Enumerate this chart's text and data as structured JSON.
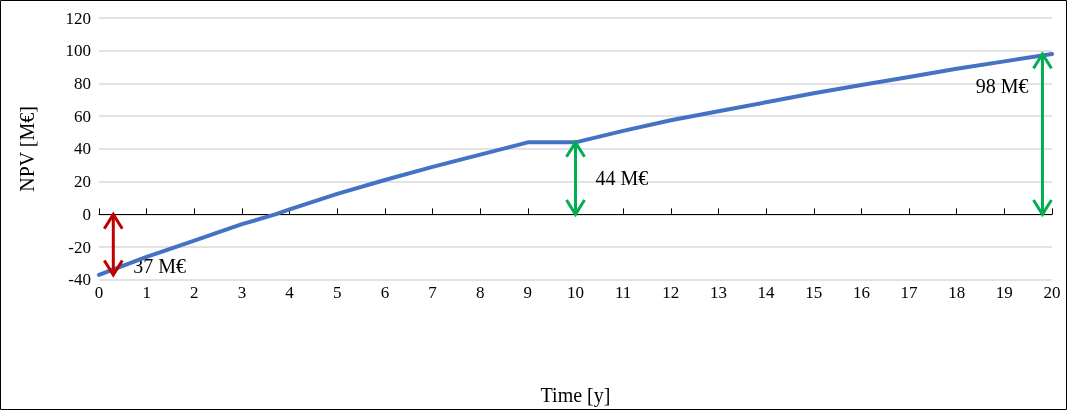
{
  "chart_data": {
    "type": "line",
    "xlabel": "Time [y]",
    "ylabel": "NPV [M€]",
    "x": [
      0,
      1,
      2,
      3,
      3.7,
      4,
      5,
      6,
      7,
      8,
      9,
      10,
      11,
      12,
      13,
      14,
      15,
      16,
      17,
      18,
      19,
      20
    ],
    "series": [
      {
        "color": "#4472c4",
        "values": [
          -37,
          -26,
          -16,
          -6,
          0,
          3,
          12.5,
          21,
          29,
          36.5,
          44,
          44,
          51,
          57.5,
          63,
          68.5,
          74,
          79,
          84,
          89,
          93.5,
          98
        ]
      }
    ],
    "xlim": [
      0,
      20
    ],
    "xticks": [
      0,
      1,
      2,
      3,
      4,
      5,
      6,
      7,
      8,
      9,
      10,
      11,
      12,
      13,
      14,
      15,
      16,
      17,
      18,
      19,
      20
    ],
    "ylim": [
      -40,
      120
    ],
    "yticks": [
      -40,
      -20,
      0,
      20,
      40,
      60,
      80,
      100,
      120
    ],
    "grid": "y",
    "marker": "none",
    "line_style": "solid",
    "annotations": [
      {
        "text": "37 M€",
        "x": 0.3,
        "y": -37
      },
      {
        "text": "44 M€",
        "x": 10,
        "y": 44
      },
      {
        "text": "98 M€",
        "x": 19.8,
        "y": 98
      }
    ]
  }
}
